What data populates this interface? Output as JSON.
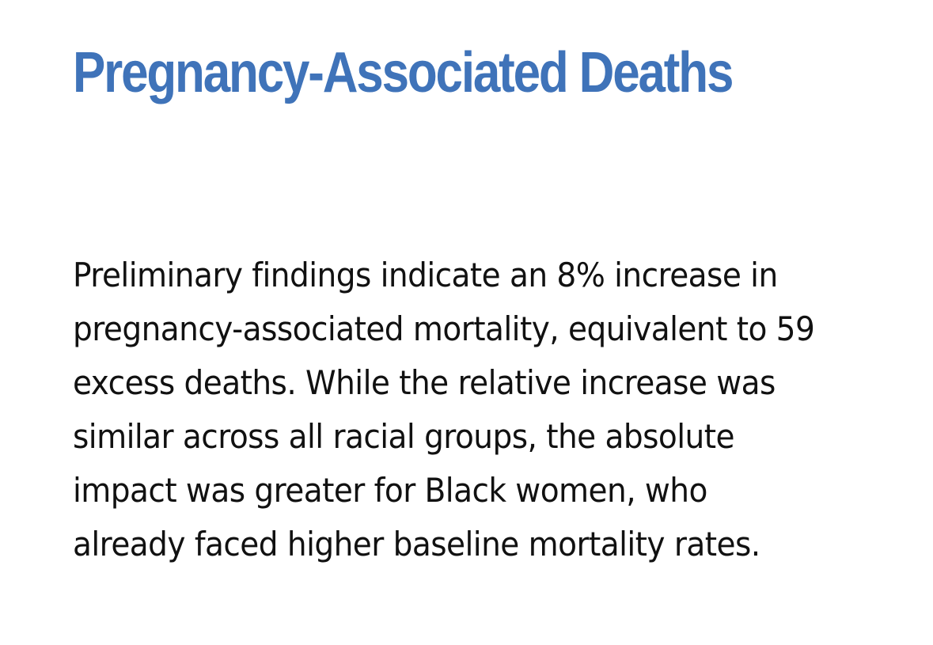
{
  "article": {
    "heading": "Pregnancy-Associated Deaths",
    "body": "Preliminary findings indicate an 8% increase in pregnancy-associated mortality, equivalent to 59 excess deaths. While the relative increase was similar across all racial groups, the absolute impact was greater for Black women, who already faced higher baseline mortality rates."
  },
  "colors": {
    "heading": "#3f73b9",
    "body_text": "#111111",
    "background": "#ffffff"
  }
}
